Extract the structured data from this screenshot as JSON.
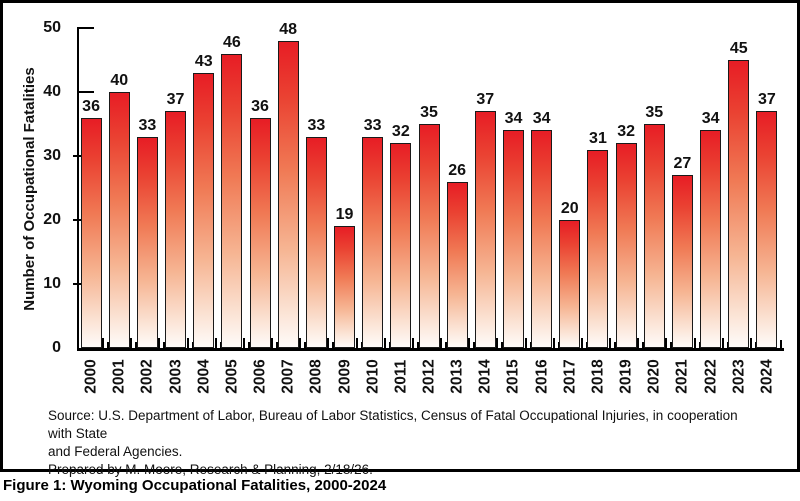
{
  "figure": {
    "caption": "Figure 1: Wyoming Occupational Fatalities, 2000-2024",
    "source_line1": "Source: U.S. Department of Labor, Bureau of Labor Statistics, Census of Fatal Occupational Injuries, in cooperation with State",
    "source_line2": "and Federal Agencies.",
    "source_line3": "Prepared by M. Moore, Research & Planning, 2/18/26."
  },
  "chart_data": {
    "type": "bar",
    "title": "",
    "xlabel": "",
    "ylabel": "Number of Occupational Fatalities",
    "categories": [
      "2000",
      "2001",
      "2002",
      "2003",
      "2004",
      "2005",
      "2006",
      "2007",
      "2008",
      "2009",
      "2010",
      "2011",
      "2012",
      "2013",
      "2014",
      "2015",
      "2016",
      "2017",
      "2018",
      "2019",
      "2020",
      "2021",
      "2022",
      "2023",
      "2024"
    ],
    "values": [
      36,
      40,
      33,
      37,
      43,
      46,
      36,
      48,
      33,
      19,
      33,
      32,
      35,
      26,
      37,
      34,
      34,
      20,
      31,
      32,
      35,
      27,
      34,
      45,
      37
    ],
    "ylim": [
      0,
      50
    ],
    "yticks": [
      0,
      10,
      20,
      30,
      40,
      50
    ],
    "grid": false,
    "legend": "none",
    "data_labels": true,
    "colors": {
      "bar_top": "#e71d25",
      "bar_bottom": "#fefbf9",
      "bar_outline": "#1a1a1a",
      "axis": "#000000",
      "text": "#111111"
    }
  }
}
